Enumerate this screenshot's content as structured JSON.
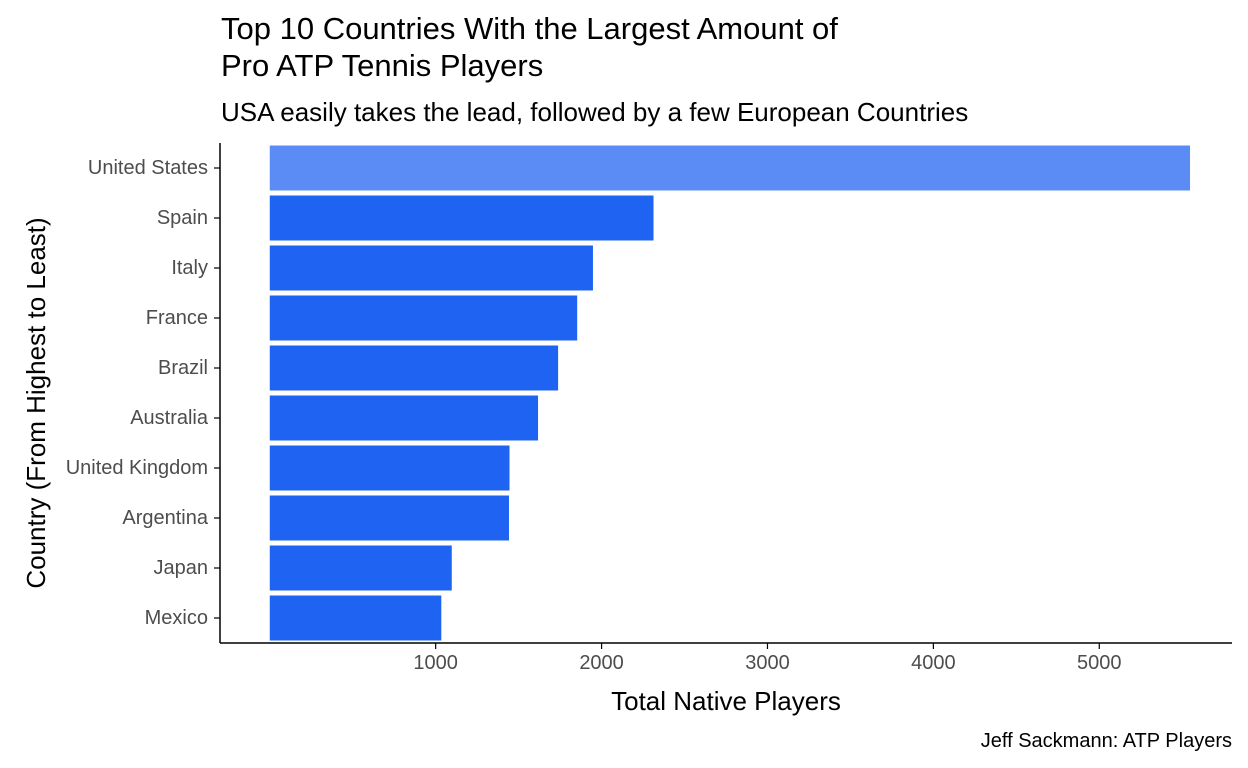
{
  "chart_data": {
    "type": "bar",
    "orientation": "horizontal",
    "title_lines": [
      "Top 10 Countries With the Largest Amount of",
      "Pro ATP Tennis Players"
    ],
    "subtitle": "USA easily takes the lead, followed by a few European Countries",
    "caption": "Jeff Sackmann: ATP Players",
    "xlabel": "Total Native Players",
    "ylabel": "Country (From Highest to Least)",
    "categories": [
      "United States",
      "Spain",
      "Italy",
      "France",
      "Brazil",
      "Australia",
      "United Kingdom",
      "Argentina",
      "Japan",
      "Mexico"
    ],
    "values": [
      5547,
      2313,
      1948,
      1853,
      1738,
      1617,
      1445,
      1442,
      1097,
      1034
    ],
    "x_ticks": [
      1000,
      2000,
      3000,
      4000,
      5000
    ],
    "xlim": [
      -300,
      5800
    ],
    "grid": false,
    "colors": {
      "highlight": "#5B8CF5",
      "bar": "#1E63F2",
      "axis": "#000000",
      "tick_label": "#4D4D4D"
    }
  }
}
